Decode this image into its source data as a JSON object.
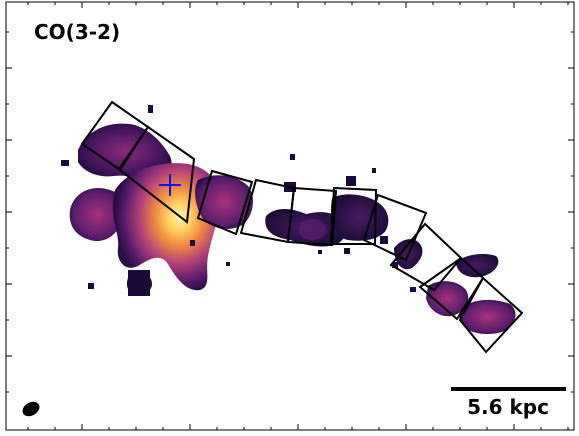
{
  "panel": {
    "title": "CO(3-2)",
    "scale_bar_label": "5.6 kpc"
  },
  "colors": {
    "background": "#ffffff",
    "box_stroke": "#000000",
    "marker": "#1010ff",
    "emission_dark": "#1a0b3a",
    "emission_purple": "#5a1d6b",
    "emission_magenta": "#a8327a",
    "emission_orange": "#f07a3a",
    "emission_yellow": "#fff2a0"
  },
  "icons": {
    "marker": "plus-marker",
    "beam": "beam-ellipse"
  }
}
